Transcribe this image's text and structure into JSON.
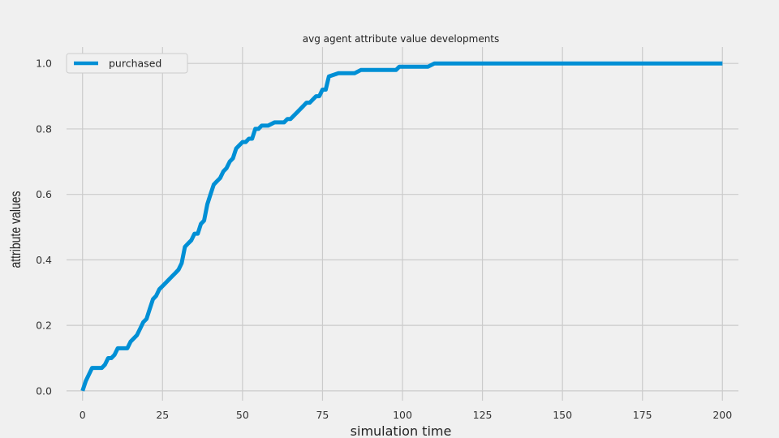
{
  "chart_data": {
    "type": "line",
    "title": "avg agent attribute value developments",
    "xlabel": "simulation time",
    "ylabel": "attribute values",
    "xlim": [
      -5,
      205
    ],
    "ylim": [
      -0.03,
      1.05
    ],
    "xticks": [
      0,
      25,
      50,
      75,
      100,
      125,
      150,
      175,
      200
    ],
    "xtick_labels": [
      "0",
      "25",
      "50",
      "75",
      "100",
      "125",
      "150",
      "175",
      "200"
    ],
    "yticks": [
      0.0,
      0.2,
      0.4,
      0.6,
      0.8,
      1.0
    ],
    "ytick_labels": [
      "0.0",
      "0.2",
      "0.4",
      "0.6",
      "0.8",
      "1.0"
    ],
    "grid": true,
    "legend_position": "top-left",
    "series": [
      {
        "name": "purchased",
        "color": "#008fd5",
        "x": [
          0,
          1,
          2,
          3,
          4,
          5,
          6,
          7,
          8,
          9,
          10,
          11,
          12,
          13,
          14,
          15,
          16,
          17,
          18,
          19,
          20,
          21,
          22,
          23,
          24,
          25,
          26,
          27,
          28,
          29,
          30,
          31,
          32,
          33,
          34,
          35,
          36,
          37,
          38,
          39,
          40,
          41,
          42,
          43,
          44,
          45,
          46,
          47,
          48,
          49,
          50,
          51,
          52,
          53,
          54,
          55,
          56,
          57,
          58,
          60,
          62,
          63,
          64,
          65,
          66,
          67,
          68,
          69,
          70,
          71,
          72,
          73,
          74,
          75,
          76,
          77,
          80,
          85,
          87,
          90,
          98,
          99,
          102,
          108,
          110,
          200
        ],
        "y": [
          0.0,
          0.03,
          0.05,
          0.07,
          0.07,
          0.07,
          0.07,
          0.08,
          0.1,
          0.1,
          0.11,
          0.13,
          0.13,
          0.13,
          0.13,
          0.15,
          0.16,
          0.17,
          0.19,
          0.21,
          0.22,
          0.25,
          0.28,
          0.29,
          0.31,
          0.32,
          0.33,
          0.34,
          0.35,
          0.36,
          0.37,
          0.39,
          0.44,
          0.45,
          0.46,
          0.48,
          0.48,
          0.51,
          0.52,
          0.57,
          0.6,
          0.63,
          0.64,
          0.65,
          0.67,
          0.68,
          0.7,
          0.71,
          0.74,
          0.75,
          0.76,
          0.76,
          0.77,
          0.77,
          0.8,
          0.8,
          0.81,
          0.81,
          0.81,
          0.82,
          0.82,
          0.82,
          0.83,
          0.83,
          0.84,
          0.85,
          0.86,
          0.87,
          0.88,
          0.88,
          0.89,
          0.9,
          0.9,
          0.92,
          0.92,
          0.96,
          0.97,
          0.97,
          0.98,
          0.98,
          0.98,
          0.99,
          0.99,
          0.99,
          1.0,
          1.0
        ]
      }
    ]
  }
}
